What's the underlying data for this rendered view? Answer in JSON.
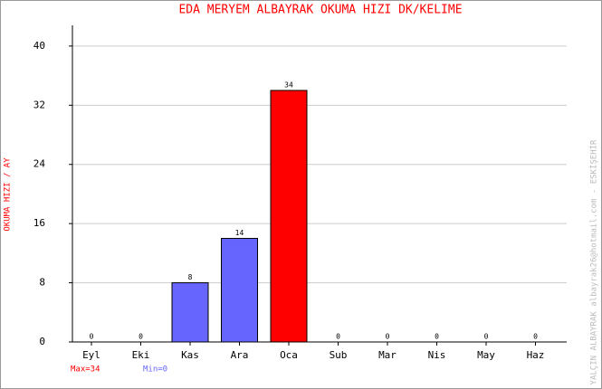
{
  "chart_data": {
    "type": "bar",
    "title": "EDA MERYEM ALBAYRAK   OKUMA HIZI  DK/KELIME",
    "y_label": "OKUMA HIZI / AY",
    "watermark": "YALÇIN ALBAYRAK   albayrak26@hotmail.com - ESKİŞEHİR",
    "max_label": "Max=34",
    "min_label": "Min=0",
    "max_color": "#ff0000",
    "min_color": "#6666ff",
    "categories": [
      "Eyl",
      "Eki",
      "Kas",
      "Ara",
      "Oca",
      "Sub",
      "Mar",
      "Nis",
      "May",
      "Haz"
    ],
    "values": [
      0,
      0,
      8,
      14,
      34,
      0,
      0,
      0,
      0,
      0
    ],
    "colors": [
      "#6666ff",
      "#6666ff",
      "#6666ff",
      "#6666ff",
      "#ff0000",
      "#6666ff",
      "#6666ff",
      "#6666ff",
      "#6666ff",
      "#6666ff"
    ],
    "ylim": [
      0,
      42.8
    ],
    "yticks": [
      0,
      8,
      16,
      24,
      32,
      40
    ],
    "grid": true
  }
}
